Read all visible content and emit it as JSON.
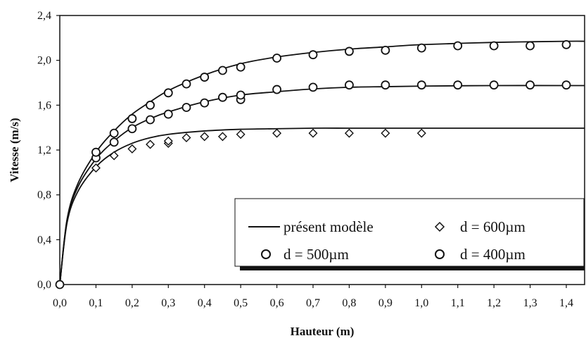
{
  "chart_data": {
    "type": "line",
    "xlabel": "Hauteur (m)",
    "ylabel": "Vitesse (m/s)",
    "xlim": [
      0,
      1.4
    ],
    "ylim": [
      0,
      2.4
    ],
    "x_ticks": [
      "0,0",
      "0,1",
      "0,2",
      "0,3",
      "0,4",
      "0,5",
      "0,6",
      "0,7",
      "0,8",
      "0,9",
      "1,0",
      "1,1",
      "1,2",
      "1,3",
      "1,4"
    ],
    "y_ticks": [
      "0,0",
      "0,4",
      "0,8",
      "1,2",
      "1,6",
      "2,0",
      "2,4"
    ],
    "grid": false,
    "legend_position": "bottom-right",
    "series": [
      {
        "name": "présent modèle",
        "kind": "line",
        "curves": [
          {
            "x": [
              0,
              0.02,
              0.05,
              0.1,
              0.15,
              0.2,
              0.25,
              0.3,
              0.4,
              0.5,
              0.6,
              0.7,
              0.8,
              0.9,
              1.0,
              1.2,
              1.4
            ],
            "y": [
              0,
              0.55,
              0.83,
              1.05,
              1.18,
              1.26,
              1.31,
              1.34,
              1.37,
              1.385,
              1.39,
              1.395,
              1.395,
              1.395,
              1.395,
              1.395,
              1.395
            ]
          },
          {
            "x": [
              0,
              0.02,
              0.05,
              0.1,
              0.15,
              0.2,
              0.25,
              0.3,
              0.4,
              0.5,
              0.6,
              0.7,
              0.8,
              0.9,
              1.0,
              1.2,
              1.4
            ],
            "y": [
              0,
              0.57,
              0.87,
              1.12,
              1.28,
              1.4,
              1.48,
              1.54,
              1.63,
              1.69,
              1.72,
              1.745,
              1.76,
              1.765,
              1.77,
              1.775,
              1.775
            ]
          },
          {
            "x": [
              0,
              0.02,
              0.05,
              0.1,
              0.15,
              0.2,
              0.25,
              0.3,
              0.4,
              0.5,
              0.6,
              0.7,
              0.8,
              0.9,
              1.0,
              1.2,
              1.4
            ],
            "y": [
              0,
              0.58,
              0.9,
              1.18,
              1.37,
              1.52,
              1.63,
              1.73,
              1.87,
              1.97,
              2.03,
              2.07,
              2.1,
              2.12,
              2.14,
              2.16,
              2.17
            ]
          }
        ]
      },
      {
        "name": "d = 600µm",
        "marker": "diamond",
        "x": [
          0.1,
          0.15,
          0.2,
          0.25,
          0.3,
          0.3,
          0.35,
          0.4,
          0.45,
          0.5,
          0.6,
          0.7,
          0.8,
          0.9,
          1.0
        ],
        "y": [
          1.04,
          1.15,
          1.21,
          1.25,
          1.26,
          1.28,
          1.31,
          1.32,
          1.32,
          1.34,
          1.35,
          1.35,
          1.35,
          1.35,
          1.35
        ]
      },
      {
        "name": "d = 500µm",
        "marker": "circle",
        "x": [
          0.1,
          0.15,
          0.2,
          0.25,
          0.3,
          0.35,
          0.4,
          0.45,
          0.5,
          0.5,
          0.6,
          0.7,
          0.8,
          0.9,
          1.0,
          1.1,
          1.2,
          1.3,
          1.4
        ],
        "y": [
          1.13,
          1.27,
          1.39,
          1.47,
          1.52,
          1.58,
          1.62,
          1.67,
          1.65,
          1.69,
          1.74,
          1.76,
          1.78,
          1.78,
          1.78,
          1.78,
          1.78,
          1.78,
          1.78
        ]
      },
      {
        "name": "d = 400µm",
        "marker": "circle",
        "x": [
          0,
          0.1,
          0.15,
          0.2,
          0.25,
          0.3,
          0.35,
          0.4,
          0.45,
          0.5,
          0.6,
          0.7,
          0.8,
          0.9,
          1.0,
          1.1,
          1.2,
          1.3,
          1.4
        ],
        "y": [
          0,
          1.18,
          1.35,
          1.48,
          1.6,
          1.71,
          1.79,
          1.85,
          1.91,
          1.94,
          2.02,
          2.05,
          2.08,
          2.09,
          2.11,
          2.13,
          2.13,
          2.13,
          2.14
        ]
      }
    ],
    "legend": [
      {
        "label": "présent modèle",
        "symbol": "line"
      },
      {
        "label": "d = 600µm",
        "symbol": "diamond"
      },
      {
        "label": "d = 500µm",
        "symbol": "circle"
      },
      {
        "label": "d = 400µm",
        "symbol": "circle"
      }
    ]
  }
}
